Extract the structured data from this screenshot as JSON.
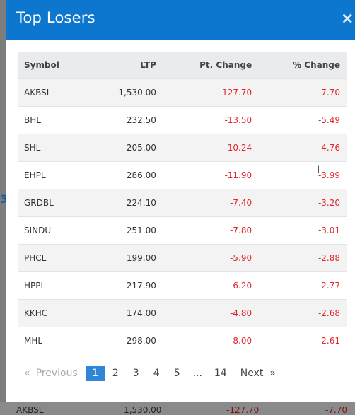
{
  "modal": {
    "title": "Top Losers",
    "close_label": "×"
  },
  "table": {
    "headers": [
      "Symbol",
      "LTP",
      "Pt. Change",
      "% Change"
    ],
    "rows": [
      [
        "AKBSL",
        "1,530.00",
        "-127.70",
        "-7.70"
      ],
      [
        "BHL",
        "232.50",
        "-13.50",
        "-5.49"
      ],
      [
        "SHL",
        "205.00",
        "-10.24",
        "-4.76"
      ],
      [
        "EHPL",
        "286.00",
        "-11.90",
        "-3.99"
      ],
      [
        "GRDBL",
        "224.10",
        "-7.40",
        "-3.20"
      ],
      [
        "SINDU",
        "251.00",
        "-7.80",
        "-3.01"
      ],
      [
        "PHCL",
        "199.00",
        "-5.90",
        "-2.88"
      ],
      [
        "HPPL",
        "217.90",
        "-6.20",
        "-2.77"
      ],
      [
        "KKHC",
        "174.00",
        "-4.80",
        "-2.68"
      ],
      [
        "MHL",
        "298.00",
        "-8.00",
        "-2.61"
      ]
    ]
  },
  "pagination": {
    "prev_arrow": "«",
    "prev_label": "Previous",
    "pages": [
      "1",
      "2",
      "3",
      "4",
      "5"
    ],
    "ellipsis": "...",
    "last_page": "14",
    "next_label": "Next",
    "next_arrow": "»",
    "active_page": "1"
  },
  "background_row": {
    "symbol": "AKBSL",
    "ltp": "1,530.00",
    "pt_change": "-127.70",
    "pct_change": "-7.70"
  },
  "colors": {
    "header_blue": "#0d77d0",
    "negative_red": "#e0262a",
    "active_page_blue": "#2f86d6"
  }
}
